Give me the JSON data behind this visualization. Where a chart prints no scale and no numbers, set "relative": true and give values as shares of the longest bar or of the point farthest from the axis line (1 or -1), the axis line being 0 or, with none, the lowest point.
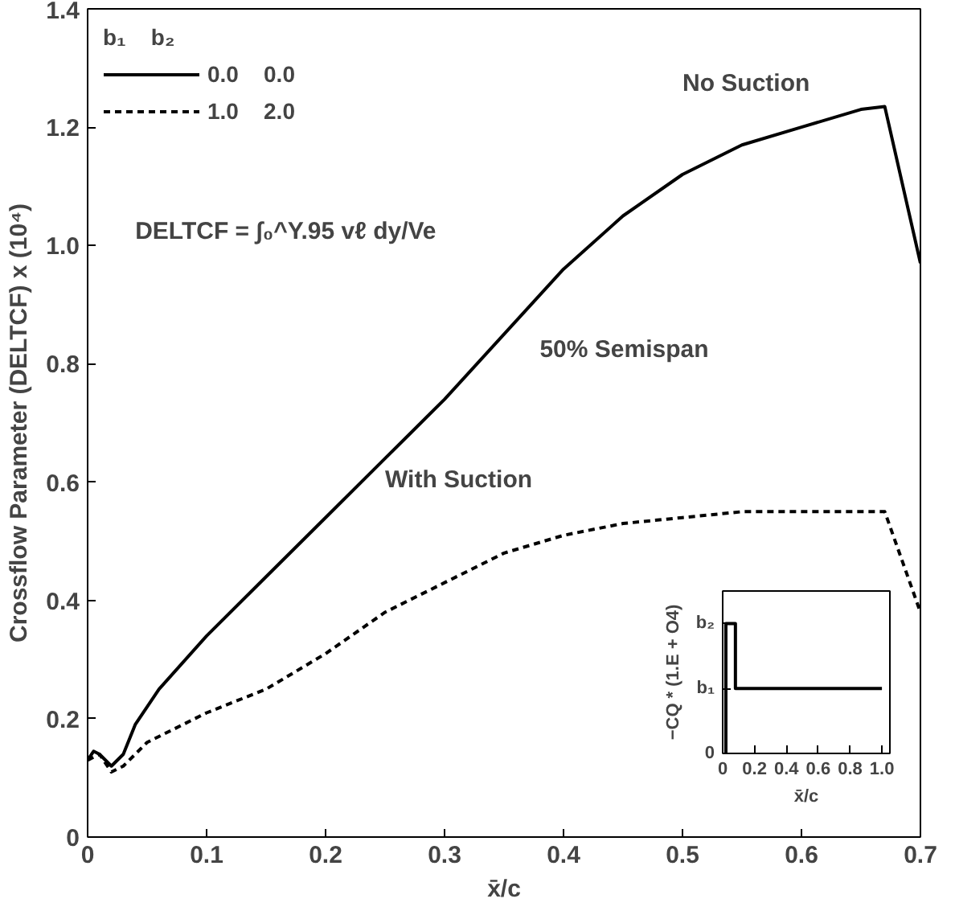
{
  "chart_data": [
    {
      "type": "line",
      "xlabel": "x̄/c",
      "ylabel": "Crossflow Parameter (DELTCF) x (10⁴)",
      "legend_title": "b₁    b₂",
      "legend": "top left",
      "grid": false,
      "xlim": [
        0,
        0.7
      ],
      "xticks": [
        0,
        0.1,
        0.2,
        0.3,
        0.4,
        0.5,
        0.6,
        0.7
      ],
      "ylim": [
        0,
        1.4
      ],
      "yticks": [
        0,
        0.2,
        0.4,
        0.6,
        0.8,
        {
          "value": 1.0,
          "label": "1.0"
        },
        1.2,
        1.4
      ],
      "annotations": [
        "No Suction",
        "50% Semispan",
        "With Suction",
        "DELTCF = ∫₀^Y.95 vℓ dy/Ve"
      ],
      "series": [
        {
          "name": "0.0    0.0",
          "color": "#000000",
          "line_style": "solid",
          "x": [
            0,
            0.005,
            0.01,
            0.02,
            0.03,
            0.04,
            0.06,
            0.1,
            0.15,
            0.2,
            0.25,
            0.3,
            0.35,
            0.4,
            0.45,
            0.5,
            0.55,
            0.6,
            0.65,
            0.67,
            0.7
          ],
          "values": [
            0.13,
            0.145,
            0.14,
            0.12,
            0.14,
            0.19,
            0.25,
            0.34,
            0.44,
            0.54,
            0.64,
            0.74,
            0.85,
            0.96,
            1.05,
            1.12,
            1.17,
            1.2,
            1.23,
            1.235,
            0.97
          ]
        },
        {
          "name": "1.0    2.0",
          "color": "#000000",
          "line_style": "dashed",
          "x": [
            0,
            0.01,
            0.02,
            0.03,
            0.05,
            0.08,
            0.1,
            0.15,
            0.2,
            0.25,
            0.3,
            0.35,
            0.4,
            0.45,
            0.5,
            0.55,
            0.6,
            0.65,
            0.67,
            0.7
          ],
          "values": [
            0.13,
            0.14,
            0.11,
            0.12,
            0.16,
            0.19,
            0.21,
            0.25,
            0.31,
            0.38,
            0.43,
            0.48,
            0.51,
            0.53,
            0.54,
            0.55,
            0.55,
            0.55,
            0.55,
            0.38
          ]
        }
      ]
    },
    {
      "type": "line",
      "xlabel": "x̄/c",
      "ylabel": "−CQ * (1.E + O4)",
      "grid": false,
      "xlim": [
        0,
        1.05
      ],
      "xticks": [
        0,
        0.2,
        0.4,
        0.6,
        0.8,
        {
          "value": 1.0,
          "label": "1.0"
        }
      ],
      "relative": true,
      "annotations": [
        "0",
        "b₁",
        "b₂"
      ],
      "series": [
        {
          "color": "#000000",
          "x": [
            0.02,
            0.02,
            0.08,
            0.08,
            1.0
          ],
          "values": [
            0,
            1,
            1,
            0.5,
            0.5
          ]
        }
      ]
    }
  ]
}
